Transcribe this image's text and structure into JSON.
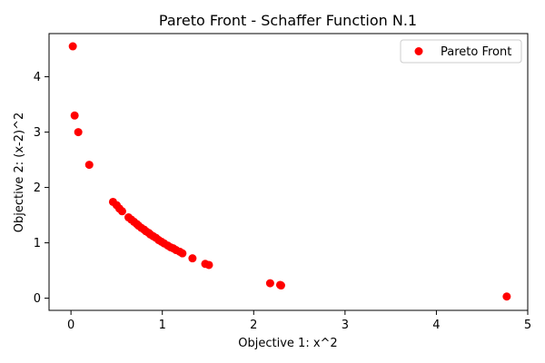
{
  "chart_data": {
    "type": "scatter",
    "title": "Pareto Front - Schaffer Function N.1",
    "xlabel": "Objective 1: x^2",
    "ylabel": "Objective 2: (x-2)^2",
    "xlim": [
      -0.24,
      5.0
    ],
    "ylim": [
      -0.22,
      4.78
    ],
    "xticks": [
      0,
      1,
      2,
      3,
      4,
      5
    ],
    "yticks": [
      0,
      1,
      2,
      3,
      4
    ],
    "grid": false,
    "legend_position": "top-right",
    "series": [
      {
        "name": "Pareto Front",
        "color": "#ff0000",
        "points": [
          [
            0.02,
            4.55
          ],
          [
            0.04,
            3.3
          ],
          [
            0.08,
            3.0
          ],
          [
            0.2,
            2.41
          ],
          [
            0.46,
            1.74
          ],
          [
            0.5,
            1.68
          ],
          [
            0.53,
            1.62
          ],
          [
            0.56,
            1.57
          ],
          [
            0.63,
            1.46
          ],
          [
            0.66,
            1.42
          ],
          [
            0.69,
            1.38
          ],
          [
            0.72,
            1.34
          ],
          [
            0.74,
            1.31
          ],
          [
            0.77,
            1.27
          ],
          [
            0.8,
            1.24
          ],
          [
            0.82,
            1.21
          ],
          [
            0.85,
            1.18
          ],
          [
            0.87,
            1.15
          ],
          [
            0.9,
            1.12
          ],
          [
            0.93,
            1.09
          ],
          [
            0.96,
            1.05
          ],
          [
            0.99,
            1.02
          ],
          [
            1.02,
            0.99
          ],
          [
            1.06,
            0.95
          ],
          [
            1.09,
            0.92
          ],
          [
            1.12,
            0.9
          ],
          [
            1.15,
            0.87
          ],
          [
            1.19,
            0.84
          ],
          [
            1.22,
            0.81
          ],
          [
            1.33,
            0.72
          ],
          [
            1.47,
            0.62
          ],
          [
            1.51,
            0.6
          ],
          [
            2.18,
            0.27
          ],
          [
            2.29,
            0.24
          ],
          [
            2.3,
            0.23
          ],
          [
            4.77,
            0.03
          ]
        ]
      }
    ]
  }
}
